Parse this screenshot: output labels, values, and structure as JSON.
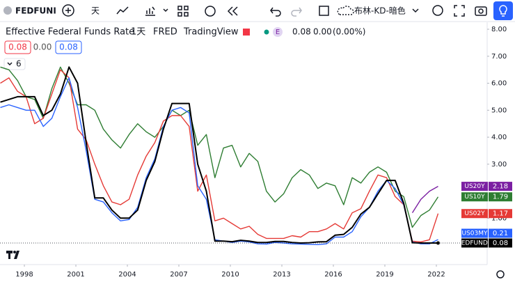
{
  "toolbar": {
    "symbol": "FEDFUNI",
    "interval": "天",
    "indicator_template": "布林-KD-暗色"
  },
  "legend_header": {
    "title": "Effective Federal Funds Rate",
    "interval": "1天",
    "source": "FRED",
    "provider": "TradingView",
    "badge": "E",
    "last": "0.08",
    "change": "0.00",
    "change_pct": "(0.00%)",
    "row2": [
      "0.08",
      "0.00",
      "0.08"
    ],
    "collapsed_count": 6
  },
  "chart_data": {
    "type": "line",
    "x": [
      1996.6,
      1997.1,
      1997.6,
      1998.1,
      1998.6,
      1999.1,
      1999.6,
      2000.1,
      2000.6,
      2001.1,
      2001.6,
      2002.1,
      2002.6,
      2003.1,
      2003.6,
      2004.1,
      2004.6,
      2005.1,
      2005.6,
      2006.1,
      2006.6,
      2007.1,
      2007.6,
      2008.1,
      2008.6,
      2009.1,
      2009.6,
      2010.1,
      2010.6,
      2011.1,
      2011.6,
      2012.1,
      2012.6,
      2013.1,
      2013.6,
      2014.1,
      2014.6,
      2015.1,
      2015.6,
      2016.1,
      2016.6,
      2017.1,
      2017.6,
      2018.1,
      2018.6,
      2019.1,
      2019.6,
      2020.1,
      2020.6,
      2021.1,
      2021.6,
      2022.1
    ],
    "series": [
      {
        "name": "US20Y",
        "color": "#7b1fa2",
        "values": [
          null,
          null,
          null,
          null,
          null,
          null,
          null,
          null,
          null,
          null,
          null,
          null,
          null,
          null,
          null,
          null,
          null,
          null,
          null,
          null,
          null,
          null,
          null,
          null,
          null,
          null,
          null,
          null,
          null,
          null,
          null,
          null,
          null,
          null,
          null,
          null,
          null,
          null,
          null,
          null,
          null,
          null,
          null,
          null,
          null,
          null,
          null,
          null,
          1.2,
          1.7,
          2.0,
          2.18
        ]
      },
      {
        "name": "US10Y",
        "color": "#2e7d32",
        "values": [
          6.6,
          6.5,
          6.1,
          5.5,
          5.4,
          4.7,
          5.8,
          6.6,
          6.0,
          5.2,
          5.2,
          5.0,
          4.3,
          3.9,
          3.6,
          4.1,
          4.5,
          4.2,
          4.0,
          4.4,
          5.0,
          4.8,
          5.0,
          3.7,
          4.1,
          2.5,
          3.6,
          3.7,
          2.9,
          3.4,
          3.1,
          2.0,
          1.6,
          1.9,
          2.5,
          2.8,
          2.6,
          2.1,
          2.3,
          2.2,
          1.5,
          2.5,
          2.3,
          2.7,
          2.9,
          2.7,
          2.0,
          1.8,
          0.66,
          1.1,
          1.3,
          1.79
        ]
      },
      {
        "name": "US02Y",
        "color": "#e53935",
        "values": [
          6.0,
          6.2,
          5.7,
          5.5,
          4.5,
          4.7,
          5.6,
          6.5,
          6.2,
          4.3,
          3.9,
          3.0,
          2.2,
          1.6,
          1.5,
          1.7,
          2.6,
          3.3,
          3.8,
          4.6,
          4.8,
          4.8,
          4.4,
          2.0,
          2.6,
          0.9,
          1.0,
          0.8,
          0.6,
          0.7,
          0.4,
          0.25,
          0.25,
          0.25,
          0.35,
          0.3,
          0.5,
          0.5,
          0.6,
          0.8,
          0.6,
          1.2,
          1.35,
          2.0,
          2.6,
          2.5,
          1.8,
          1.5,
          0.15,
          0.12,
          0.2,
          1.17
        ]
      },
      {
        "name": "US03MY",
        "color": "#2962ff",
        "values": [
          5.1,
          5.2,
          5.1,
          5.0,
          5.0,
          4.4,
          4.7,
          5.5,
          6.2,
          5.1,
          3.5,
          1.7,
          1.6,
          1.2,
          0.9,
          0.95,
          1.4,
          2.5,
          3.2,
          4.4,
          5.0,
          5.1,
          4.9,
          2.2,
          1.7,
          0.2,
          0.15,
          0.1,
          0.15,
          0.12,
          0.05,
          0.04,
          0.1,
          0.08,
          0.05,
          0.04,
          0.03,
          0.02,
          0.05,
          0.3,
          0.3,
          0.5,
          1.05,
          1.4,
          2.0,
          2.4,
          2.1,
          1.5,
          0.12,
          0.05,
          0.05,
          0.21
        ]
      },
      {
        "name": "FEDFUNDS",
        "color": "#000000",
        "values": [
          5.3,
          5.4,
          5.5,
          5.5,
          5.5,
          4.8,
          5.0,
          5.6,
          6.6,
          6.0,
          3.8,
          1.75,
          1.75,
          1.3,
          1.0,
          1.0,
          1.3,
          2.4,
          3.1,
          4.3,
          5.25,
          5.25,
          5.25,
          3.0,
          2.0,
          0.15,
          0.15,
          0.13,
          0.18,
          0.15,
          0.1,
          0.1,
          0.14,
          0.14,
          0.1,
          0.08,
          0.09,
          0.12,
          0.13,
          0.37,
          0.4,
          0.66,
          1.15,
          1.4,
          1.9,
          2.4,
          2.4,
          1.55,
          0.09,
          0.08,
          0.08,
          0.08
        ]
      }
    ],
    "xlim": [
      1996.58,
      2024.96
    ],
    "xticks": [
      1998,
      2001,
      2004,
      2007,
      2010,
      2013,
      2016,
      2019,
      2022
    ],
    "ylim": [
      -0.72,
      8.31
    ],
    "yticks": [
      {
        "value": 1,
        "label": "1.00"
      },
      {
        "value": 3,
        "label": "3.00"
      },
      {
        "value": 4,
        "label": "4.00"
      },
      {
        "value": 5,
        "label": "5.00"
      },
      {
        "value": 6,
        "label": "6.00"
      },
      {
        "value": 7,
        "label": "7.00"
      },
      {
        "value": 8,
        "label": "8.00"
      }
    ],
    "grid": false
  }
}
